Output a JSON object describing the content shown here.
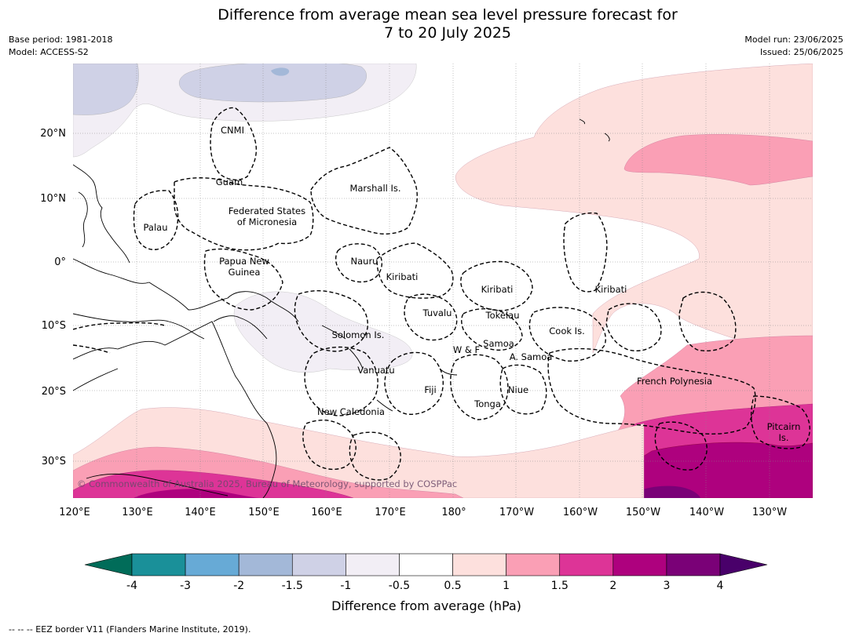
{
  "title": {
    "line1": "Difference from average mean sea level pressure forecast for",
    "line2": "7 to 20 July 2025"
  },
  "meta_left": {
    "base_period": "Base period: 1981-2018",
    "model": "Model: ACCESS-S2"
  },
  "meta_right": {
    "model_run": "Model run: 23/06/2025",
    "issued": "Issued: 25/06/2025"
  },
  "map": {
    "lon_labels": [
      "120°E",
      "130°E",
      "140°E",
      "150°E",
      "160°E",
      "170°E",
      "180°",
      "170°W",
      "160°W",
      "150°W",
      "140°W",
      "130°W"
    ],
    "lat_labels": [
      "20°N",
      "10°N",
      "0°",
      "10°S",
      "20°S",
      "30°S"
    ],
    "territories": [
      {
        "name": "CNMI"
      },
      {
        "name": "Guam"
      },
      {
        "name": "Marshall Is."
      },
      {
        "name": "Federated States"
      },
      {
        "name": "of Micronesia"
      },
      {
        "name": "Palau"
      },
      {
        "name": "Papua New"
      },
      {
        "name": "Guinea"
      },
      {
        "name": "Nauru"
      },
      {
        "name": "Kiribati"
      },
      {
        "name": "Kiribati"
      },
      {
        "name": "Kiribati"
      },
      {
        "name": "Tuvalu"
      },
      {
        "name": "Tokelau"
      },
      {
        "name": "Cook Is."
      },
      {
        "name": "Solomon Is."
      },
      {
        "name": "W & F"
      },
      {
        "name": "Samoa"
      },
      {
        "name": "A. Samoa"
      },
      {
        "name": "Vanuatu"
      },
      {
        "name": "Fiji"
      },
      {
        "name": "Niue"
      },
      {
        "name": "French Polynesia"
      },
      {
        "name": "Tonga"
      },
      {
        "name": "New Caledonia"
      },
      {
        "name": "Pitcairn"
      },
      {
        "name": "Is."
      }
    ],
    "copyright": "© Commonwealth of Australia 2025, Bureau of Meteorology, supported by COSPPac"
  },
  "colorbar": {
    "ticks": [
      "-4",
      "-3",
      "-2",
      "-1.5",
      "-1",
      "-0.5",
      "0.5",
      "1",
      "1.5",
      "2",
      "3",
      "4"
    ],
    "colors": [
      "#1a9099",
      "#67aad6",
      "#a3b8d8",
      "#cfd1e6",
      "#f2eef5",
      "#ffffff",
      "#fde0dd",
      "#fa9fb5",
      "#dd3497",
      "#ae017e",
      "#7a0177"
    ],
    "under_color": "#016c59",
    "over_color": "#49006a",
    "label": "Difference from average (hPa)"
  },
  "legend_line": "-- -- -- EEZ border V11 (Flanders Marine Institute, 2019)."
}
